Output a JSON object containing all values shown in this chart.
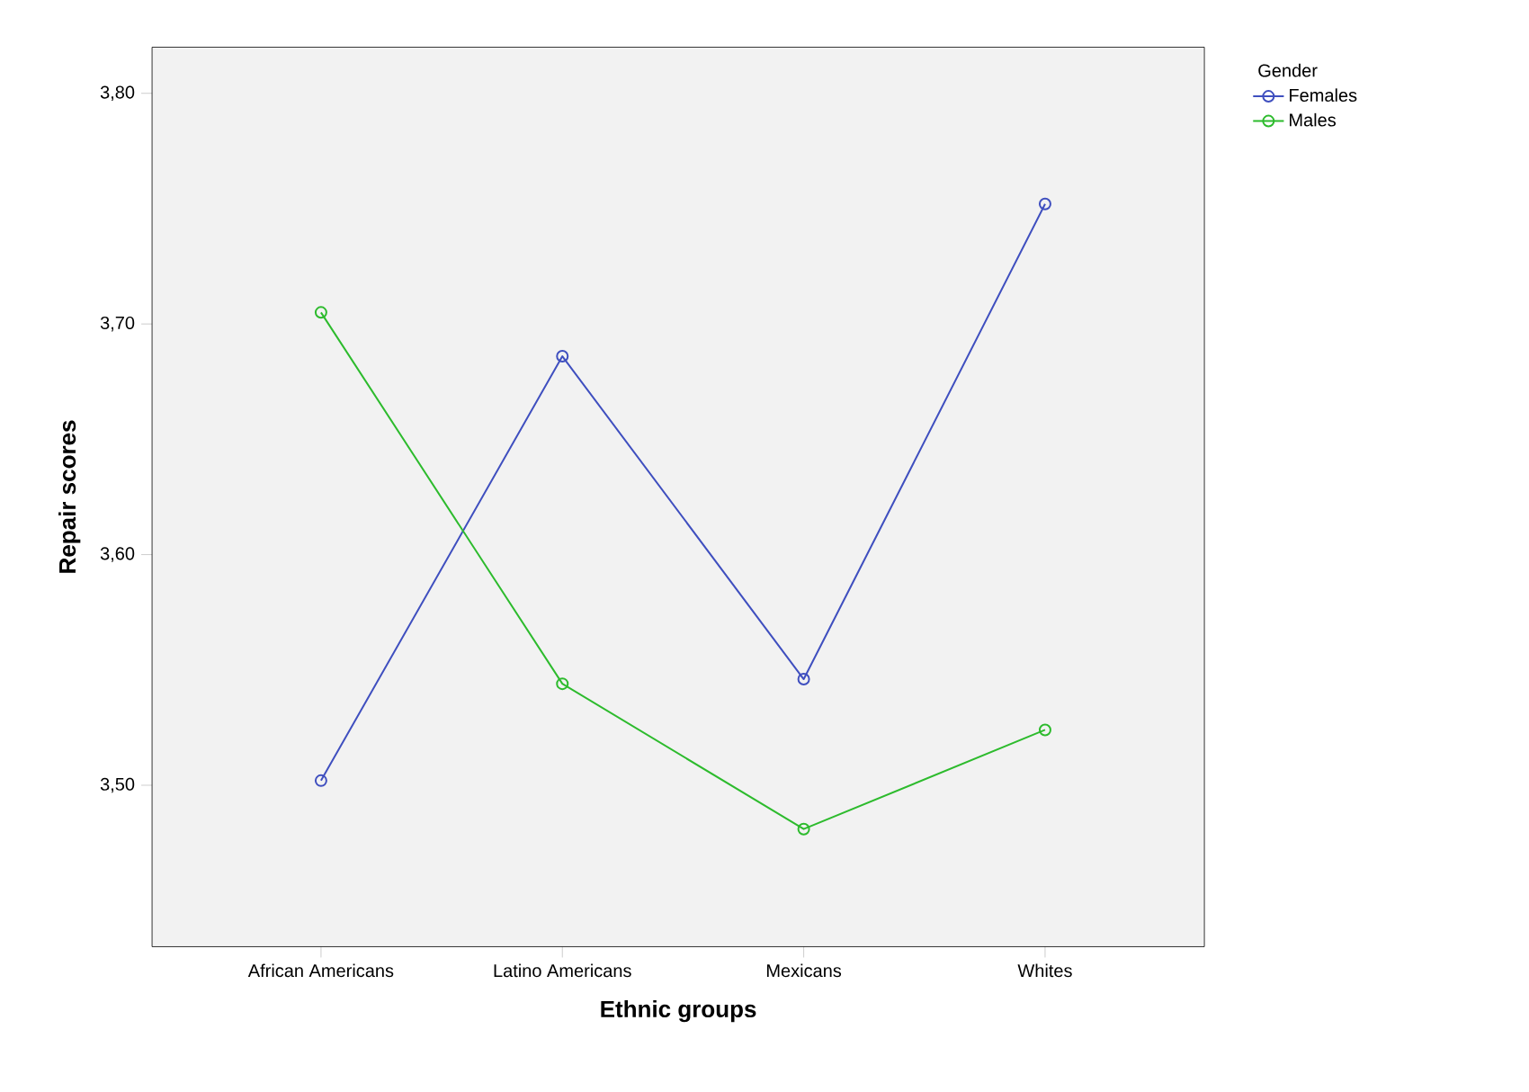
{
  "chart_data": {
    "type": "line",
    "xlabel": "Ethnic groups",
    "ylabel": "Repair scores",
    "legend_title": "Gender",
    "categories": [
      "African Americans",
      "Latino Americans",
      "Mexicans",
      "Whites"
    ],
    "series": [
      {
        "name": "Females",
        "color": "#3f4fbf",
        "values": [
          3.502,
          3.686,
          3.546,
          3.752
        ]
      },
      {
        "name": "Males",
        "color": "#2dbb2d",
        "values": [
          3.705,
          3.544,
          3.481,
          3.524
        ]
      }
    ],
    "ylim": [
      3.43,
      3.82
    ],
    "yticks": [
      {
        "value": 3.5,
        "label": "3,50"
      },
      {
        "value": 3.6,
        "label": "3,60"
      },
      {
        "value": 3.7,
        "label": "3,70"
      },
      {
        "value": 3.8,
        "label": "3,80"
      }
    ],
    "legend": "top right",
    "marker": "circle",
    "line_style": "solid",
    "grid": false
  }
}
